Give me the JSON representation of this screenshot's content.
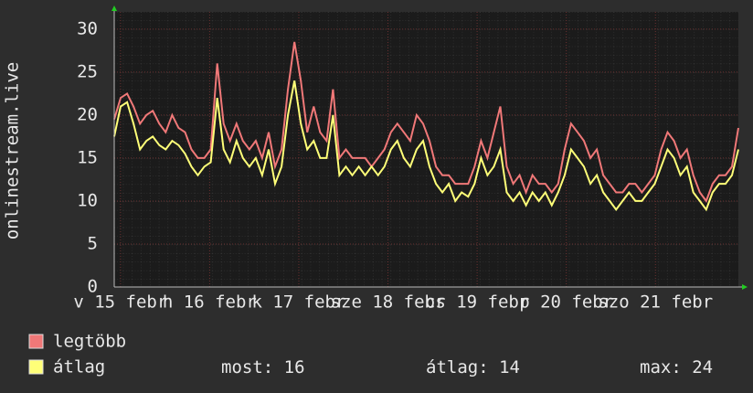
{
  "chart_data": {
    "type": "line",
    "y_label": "onlinestream.live",
    "ylim": [
      0,
      32
    ],
    "yticks": [
      0,
      5,
      10,
      15,
      20,
      25,
      30
    ],
    "xlim": [
      -0.07,
      6.93
    ],
    "xticks": [
      {
        "value": 0,
        "label": "v 15 febr"
      },
      {
        "value": 1,
        "label": "h 16 febr"
      },
      {
        "value": 2,
        "label": "k 17 febr"
      },
      {
        "value": 3,
        "label": "sze 18 febr"
      },
      {
        "value": 4,
        "label": "cs 19 febr"
      },
      {
        "value": 5,
        "label": "p 20 febr"
      },
      {
        "value": 6,
        "label": "szo 21 febr"
      }
    ],
    "grid": true,
    "series": [
      {
        "name": "legtöbb",
        "color": "#f07878",
        "values": [
          19.5,
          22,
          22.5,
          21,
          19,
          20,
          20.5,
          19,
          18,
          20,
          18.5,
          18,
          16,
          15,
          15,
          16,
          26,
          19,
          17,
          19,
          17,
          16,
          17,
          15,
          18,
          14,
          16,
          23,
          28.5,
          24,
          18,
          21,
          18,
          17,
          23,
          15,
          16,
          15,
          15,
          15,
          14,
          15,
          16,
          18,
          19,
          18,
          17,
          20,
          19,
          17,
          14,
          13,
          13,
          12,
          12,
          12,
          14,
          17,
          15,
          18,
          21,
          14,
          12,
          13,
          11,
          13,
          12,
          12,
          11,
          12,
          16,
          19,
          18,
          17,
          15,
          16,
          13,
          12,
          11,
          11,
          12,
          12,
          11,
          12,
          13,
          16,
          18,
          17,
          15,
          16,
          13,
          11,
          10,
          12,
          13,
          13,
          14,
          18.5
        ]
      },
      {
        "name": "átlag",
        "color": "#ffff78",
        "values": [
          17.5,
          21,
          21.5,
          19,
          16,
          17,
          17.5,
          16.5,
          16,
          17,
          16.5,
          15.5,
          14,
          13,
          14,
          14.5,
          22,
          16,
          14.5,
          17,
          15,
          14,
          15,
          13,
          16,
          12,
          14,
          20,
          24,
          19,
          16,
          17,
          15,
          15,
          20,
          13,
          14,
          13,
          14,
          13,
          14,
          13,
          14,
          16,
          17,
          15,
          14,
          16,
          17,
          14,
          12,
          11,
          12,
          10,
          11,
          10.5,
          12,
          15,
          13,
          14,
          16,
          11,
          10,
          11,
          9.5,
          11,
          10,
          11,
          9.5,
          11,
          13,
          16,
          15,
          14,
          12,
          13,
          11,
          10,
          9,
          10,
          11,
          10,
          10,
          11,
          12,
          14,
          16,
          15,
          13,
          14,
          11,
          10,
          9,
          11,
          12,
          12,
          13,
          16
        ]
      }
    ],
    "stats": [
      {
        "label": "most:",
        "value": 16
      },
      {
        "label": "átlag:",
        "value": 14
      },
      {
        "label": "max:",
        "value": 24
      }
    ]
  }
}
